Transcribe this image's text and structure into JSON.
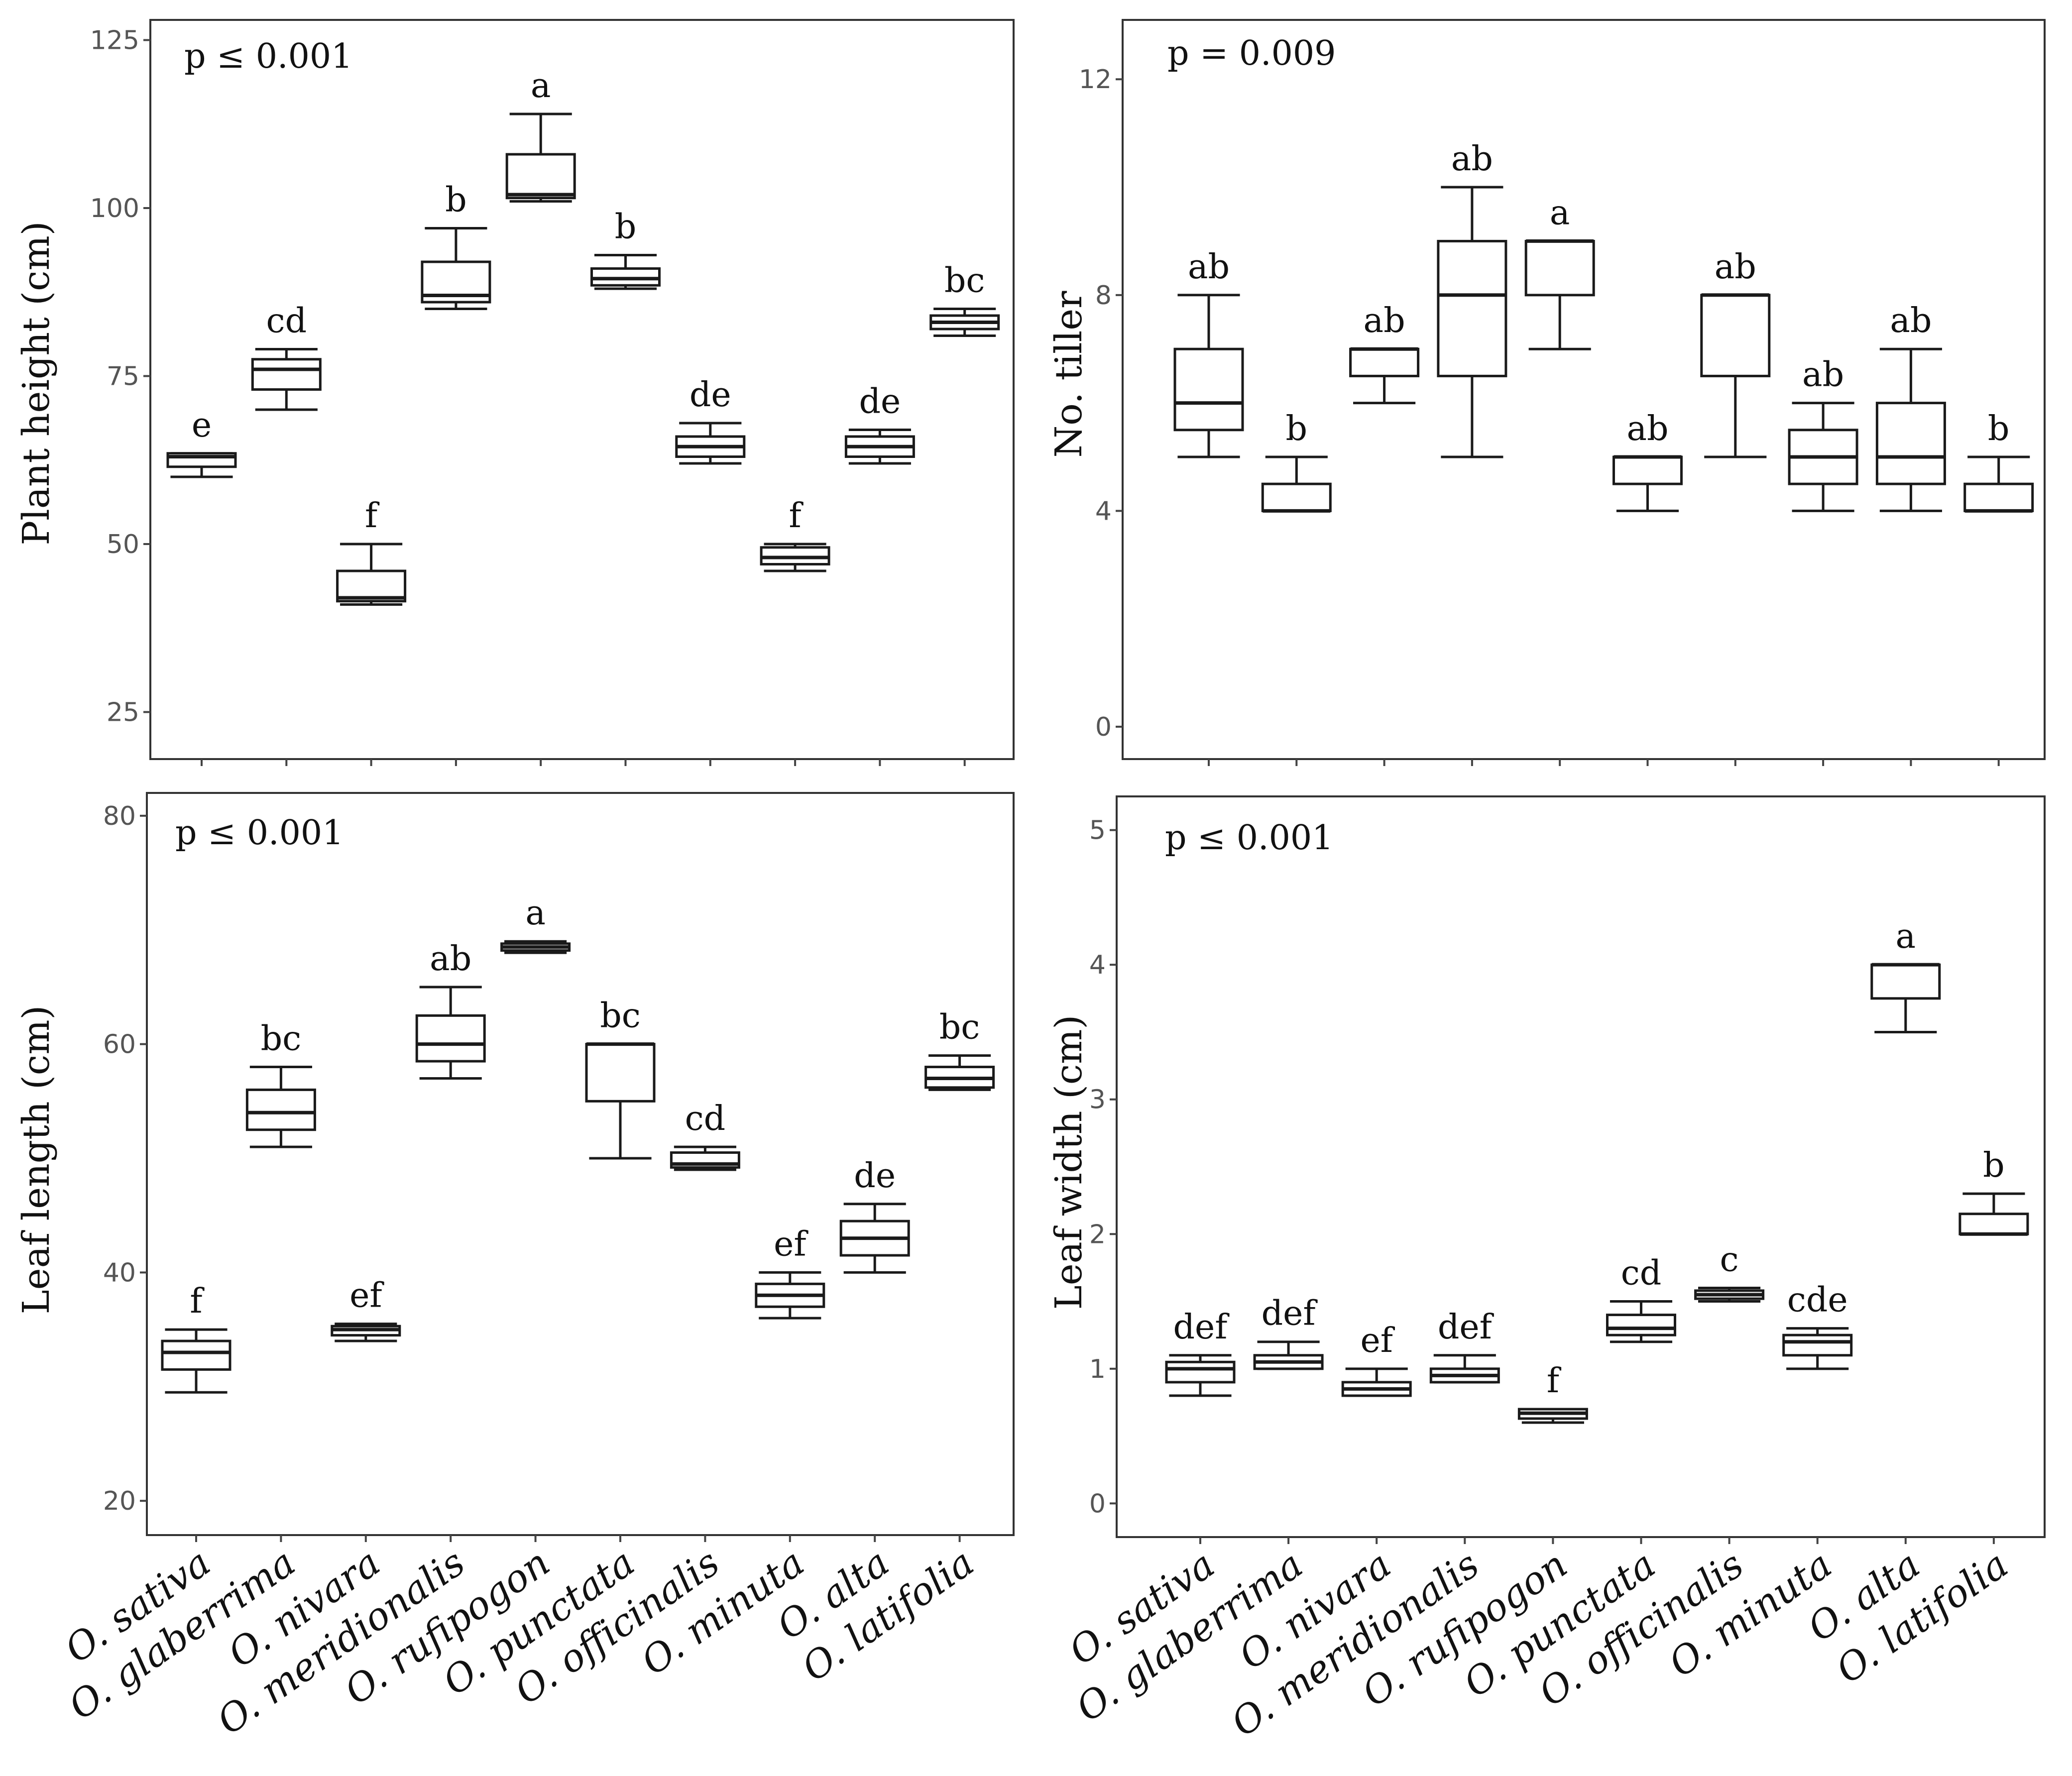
{
  "chart_data": [
    {
      "type": "boxplot",
      "title": "",
      "xlabel": "",
      "ylabel": "Plant height (cm)",
      "annotation": "p ≤ 0.001",
      "ylim": [
        18,
        128
      ],
      "yticks": [
        25,
        50,
        75,
        100,
        125
      ],
      "categories": [
        "O. sativa",
        "O. glaberrima",
        "O. nivara",
        "O. meridionalis",
        "O. rufipogon",
        "O. punctata",
        "O. officinalis",
        "O. minuta",
        "O. alta",
        "O. latifolia"
      ],
      "boxes": [
        {
          "min": 60,
          "q1": 61.5,
          "median": 63,
          "q3": 63.5,
          "max": 63.5
        },
        {
          "min": 70,
          "q1": 73,
          "median": 76,
          "q3": 77.5,
          "max": 79
        },
        {
          "min": 41,
          "q1": 41.5,
          "median": 42,
          "q3": 46,
          "max": 50
        },
        {
          "min": 85,
          "q1": 86,
          "median": 87,
          "q3": 92,
          "max": 97
        },
        {
          "min": 101,
          "q1": 101.5,
          "median": 102,
          "q3": 108,
          "max": 114
        },
        {
          "min": 88,
          "q1": 88.5,
          "median": 89.5,
          "q3": 91,
          "max": 93
        },
        {
          "min": 62,
          "q1": 63,
          "median": 64.5,
          "q3": 66,
          "max": 68
        },
        {
          "min": 46,
          "q1": 47,
          "median": 48,
          "q3": 49.5,
          "max": 50
        },
        {
          "min": 62,
          "q1": 63,
          "median": 64.5,
          "q3": 66,
          "max": 67
        },
        {
          "min": 81,
          "q1": 82,
          "median": 83,
          "q3": 84,
          "max": 85
        }
      ],
      "letters": [
        "e",
        "cd",
        "f",
        "b",
        "a",
        "b",
        "de",
        "f",
        "de",
        "bc"
      ]
    },
    {
      "type": "boxplot",
      "title": "",
      "xlabel": "",
      "ylabel": "No. tiller",
      "annotation": "p = 0.009",
      "ylim": [
        -0.6,
        13.1
      ],
      "yticks": [
        0,
        4,
        8,
        12
      ],
      "categories": [
        "O. sativa",
        "O. glaberrima",
        "O. nivara",
        "O. meridionalis",
        "O. rufipogon",
        "O. punctata",
        "O. officinalis",
        "O. minuta",
        "O. alta",
        "O. latifolia"
      ],
      "boxes": [
        {
          "min": 5,
          "q1": 5.5,
          "median": 6,
          "q3": 7,
          "max": 8
        },
        {
          "min": 4,
          "q1": 4,
          "median": 4,
          "q3": 4.5,
          "max": 5
        },
        {
          "min": 6,
          "q1": 6.5,
          "median": 7,
          "q3": 7,
          "max": 7
        },
        {
          "min": 5,
          "q1": 6.5,
          "median": 8,
          "q3": 9,
          "max": 10
        },
        {
          "min": 7,
          "q1": 8,
          "median": 9,
          "q3": 9,
          "max": 9
        },
        {
          "min": 4,
          "q1": 4.5,
          "median": 5,
          "q3": 5,
          "max": 5
        },
        {
          "min": 5,
          "q1": 6.5,
          "median": 8,
          "q3": 8,
          "max": 8
        },
        {
          "min": 4,
          "q1": 4.5,
          "median": 5,
          "q3": 5.5,
          "max": 6
        },
        {
          "min": 4,
          "q1": 4.5,
          "median": 5,
          "q3": 6,
          "max": 7
        },
        {
          "min": 4,
          "q1": 4,
          "median": 4,
          "q3": 4.5,
          "max": 5
        }
      ],
      "letters": [
        "ab",
        "b",
        "ab",
        "ab",
        "a",
        "ab",
        "ab",
        "ab",
        "ab",
        "b"
      ]
    },
    {
      "type": "boxplot",
      "title": "",
      "xlabel": "",
      "ylabel": "Leaf length (cm)",
      "annotation": "p ≤ 0.001",
      "ylim": [
        17,
        82
      ],
      "yticks": [
        20,
        40,
        60,
        80
      ],
      "categories": [
        "O. sativa",
        "O. glaberrima",
        "O. nivara",
        "O. meridionalis",
        "O. rufipogon",
        "O. punctata",
        "O. officinalis",
        "O. minuta",
        "O. alta",
        "O. latifolia"
      ],
      "boxes": [
        {
          "min": 29.5,
          "q1": 31.5,
          "median": 33,
          "q3": 34,
          "max": 35
        },
        {
          "min": 51,
          "q1": 52.5,
          "median": 54,
          "q3": 56,
          "max": 58
        },
        {
          "min": 34,
          "q1": 34.5,
          "median": 35,
          "q3": 35.3,
          "max": 35.5
        },
        {
          "min": 57,
          "q1": 58.5,
          "median": 60,
          "q3": 62.5,
          "max": 65
        },
        {
          "min": 68,
          "q1": 68.2,
          "median": 68.5,
          "q3": 68.8,
          "max": 69
        },
        {
          "min": 50,
          "q1": 55,
          "median": 60,
          "q3": 60,
          "max": 60
        },
        {
          "min": 49,
          "q1": 49.2,
          "median": 49.5,
          "q3": 50.5,
          "max": 51
        },
        {
          "min": 36,
          "q1": 37,
          "median": 38,
          "q3": 39,
          "max": 40
        },
        {
          "min": 40,
          "q1": 41.5,
          "median": 43,
          "q3": 44.5,
          "max": 46
        },
        {
          "min": 56,
          "q1": 56.2,
          "median": 57,
          "q3": 58,
          "max": 59
        }
      ],
      "letters": [
        "f",
        "bc",
        "ef",
        "ab",
        "a",
        "bc",
        "cd",
        "ef",
        "de",
        "bc"
      ]
    },
    {
      "type": "boxplot",
      "title": "",
      "xlabel": "",
      "ylabel": "Leaf width (cm)",
      "annotation": "p ≤ 0.001",
      "ylim": [
        -0.25,
        5.25
      ],
      "yticks": [
        0,
        1,
        2,
        3,
        4,
        5
      ],
      "categories": [
        "O. sativa",
        "O. glaberrima",
        "O. nivara",
        "O. meridionalis",
        "O. rufipogon",
        "O. punctata",
        "O. officinalis",
        "O. minuta",
        "O. alta",
        "O. latifolia"
      ],
      "boxes": [
        {
          "min": 0.8,
          "q1": 0.9,
          "median": 1.0,
          "q3": 1.05,
          "max": 1.1
        },
        {
          "min": 1.0,
          "q1": 1.0,
          "median": 1.05,
          "q3": 1.1,
          "max": 1.2
        },
        {
          "min": 0.8,
          "q1": 0.8,
          "median": 0.85,
          "q3": 0.9,
          "max": 1.0
        },
        {
          "min": 0.9,
          "q1": 0.9,
          "median": 0.95,
          "q3": 1.0,
          "max": 1.1
        },
        {
          "min": 0.6,
          "q1": 0.63,
          "median": 0.67,
          "q3": 0.7,
          "max": 0.7
        },
        {
          "min": 1.2,
          "q1": 1.25,
          "median": 1.3,
          "q3": 1.4,
          "max": 1.5
        },
        {
          "min": 1.5,
          "q1": 1.52,
          "median": 1.55,
          "q3": 1.58,
          "max": 1.6
        },
        {
          "min": 1.0,
          "q1": 1.1,
          "median": 1.2,
          "q3": 1.25,
          "max": 1.3
        },
        {
          "min": 3.5,
          "q1": 3.75,
          "median": 4.0,
          "q3": 4.0,
          "max": 4.0
        },
        {
          "min": 2.0,
          "q1": 2.0,
          "median": 2.0,
          "q3": 2.15,
          "max": 2.3
        }
      ],
      "letters": [
        "def",
        "def",
        "ef",
        "def",
        "f",
        "cd",
        "c",
        "cde",
        "a",
        "b"
      ]
    }
  ]
}
